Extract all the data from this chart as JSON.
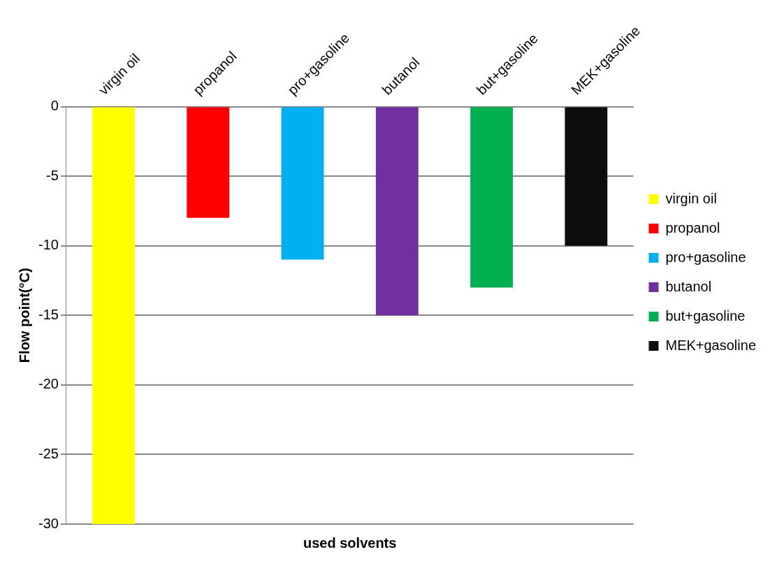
{
  "chart_data": {
    "type": "bar",
    "xlabel": "used solvents",
    "ylabel": "Flow point(°C)",
    "categories": [
      "virgin oil",
      "propanol",
      "pro+gasoline",
      "butanol",
      "but+gasoline",
      "MEK+gasoline"
    ],
    "series": [
      {
        "name": "virgin oil",
        "color": "#ffff00",
        "values": [
          -30,
          null,
          null,
          null,
          null,
          null
        ]
      },
      {
        "name": "propanol",
        "color": "#ff0000",
        "values": [
          null,
          -8,
          null,
          null,
          null,
          null
        ]
      },
      {
        "name": "pro+gasoline",
        "color": "#00b0f0",
        "values": [
          null,
          null,
          -11,
          null,
          null,
          null
        ]
      },
      {
        "name": "butanol",
        "color": "#7030a0",
        "values": [
          null,
          null,
          null,
          -15,
          null,
          null
        ]
      },
      {
        "name": "but+gasoline",
        "color": "#00b050",
        "values": [
          null,
          null,
          null,
          null,
          -13,
          null
        ]
      },
      {
        "name": "MEK+gasoline",
        "color": "#0d0d0d",
        "values": [
          null,
          null,
          null,
          null,
          null,
          -10
        ]
      }
    ],
    "ylim": [
      -30,
      0
    ],
    "yticks": [
      -30,
      -25,
      -20,
      -15,
      -10,
      -5,
      0
    ],
    "grid": "y",
    "legend": "right"
  }
}
